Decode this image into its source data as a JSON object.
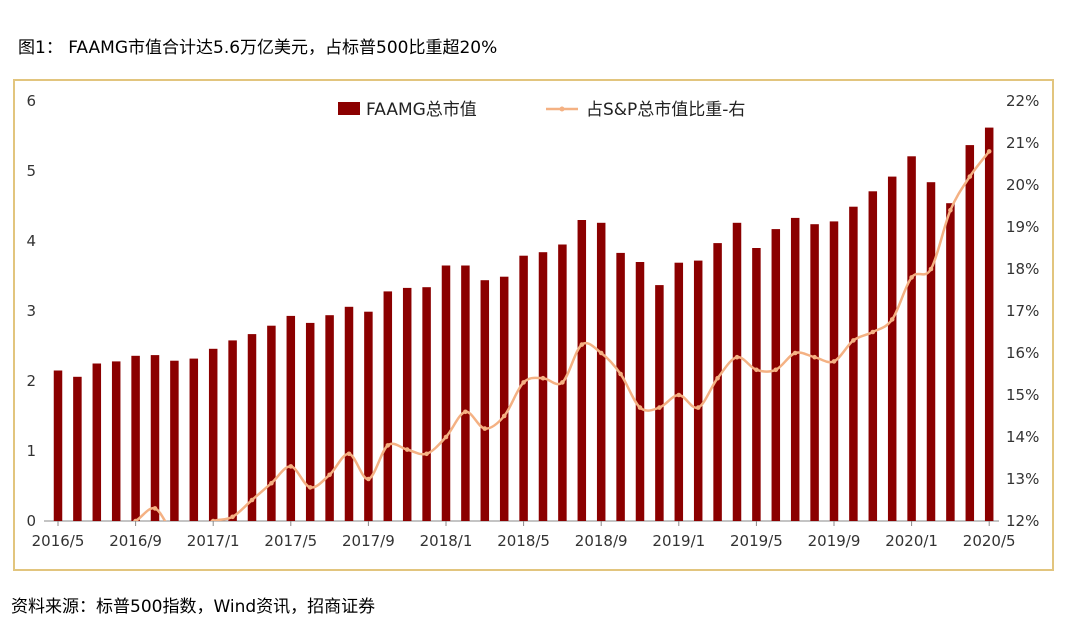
{
  "title": "图1： FAAMG市值合计达5.6万亿美元，占标普500比重超20%",
  "source": "资料来源：标普500指数，Wind资讯，招商证券",
  "colors": {
    "bar": "#8b0000",
    "line": "#f4b183",
    "frame": "#e2c57e"
  },
  "chart_data": {
    "type": "bar",
    "xticks": [
      "2016/5",
      "2016/9",
      "2017/1",
      "2017/5",
      "2017/9",
      "2018/1",
      "2018/5",
      "2018/9",
      "2019/1",
      "2019/5",
      "2019/9",
      "2020/1",
      "2020/5"
    ],
    "yticks_left": [
      "0",
      "1",
      "2",
      "3",
      "4",
      "5",
      "6"
    ],
    "yticks_right": [
      "12%",
      "13%",
      "14%",
      "15%",
      "16%",
      "17%",
      "18%",
      "19%",
      "20%",
      "21%",
      "22%"
    ],
    "ylim_left": [
      0,
      6
    ],
    "ylim_right": [
      12,
      22
    ],
    "legend_position": "top-center",
    "series": [
      {
        "name": "FAAMG总市值",
        "type": "bar",
        "axis": "left",
        "values": [
          2.15,
          2.06,
          2.25,
          2.28,
          2.36,
          2.37,
          2.29,
          2.32,
          2.46,
          2.58,
          2.67,
          2.79,
          2.93,
          2.83,
          2.94,
          3.06,
          2.99,
          3.28,
          3.33,
          3.34,
          3.65,
          3.65,
          3.44,
          3.49,
          3.79,
          3.84,
          3.95,
          4.3,
          4.26,
          3.83,
          3.7,
          3.37,
          3.69,
          3.72,
          3.97,
          4.26,
          3.9,
          4.17,
          4.33,
          4.24,
          4.28,
          4.49,
          4.71,
          4.92,
          5.21,
          4.84,
          4.54,
          5.37,
          5.62
        ]
      },
      {
        "name": "占S&P总市值比重-右",
        "type": "line",
        "axis": "right",
        "values": [
          11.5,
          11.6,
          11.7,
          11.8,
          12.0,
          12.3,
          11.7,
          11.8,
          12.0,
          12.1,
          12.5,
          12.9,
          13.3,
          12.8,
          13.1,
          13.6,
          13.0,
          13.8,
          13.7,
          13.6,
          14.0,
          14.6,
          14.2,
          14.5,
          15.3,
          15.4,
          15.3,
          16.2,
          16.0,
          15.5,
          14.7,
          14.7,
          15.0,
          14.7,
          15.4,
          15.9,
          15.6,
          15.6,
          16.0,
          15.9,
          15.8,
          16.3,
          16.5,
          16.8,
          17.8,
          18.0,
          19.4,
          20.2,
          20.8
        ]
      }
    ]
  }
}
